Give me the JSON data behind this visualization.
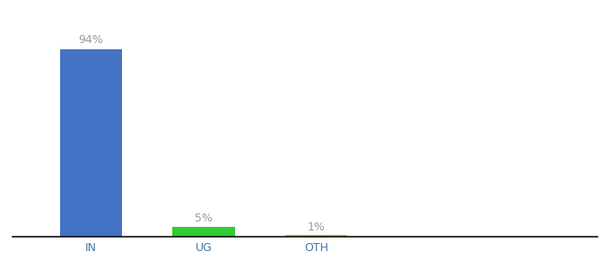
{
  "categories": [
    "IN",
    "UG",
    "OTH"
  ],
  "values": [
    94,
    5,
    1
  ],
  "bar_colors": [
    "#4472c4",
    "#33cc33",
    "#f0a800"
  ],
  "labels": [
    "94%",
    "5%",
    "1%"
  ],
  "title_fontsize": 10,
  "label_fontsize": 9,
  "tick_fontsize": 9,
  "background_color": "#ffffff",
  "ylim": [
    0,
    105
  ],
  "bar_width": 0.55,
  "label_color": "#999999",
  "tick_color": "#4477aa",
  "x_positions": [
    1,
    2,
    3
  ],
  "xlim": [
    0.3,
    5.5
  ]
}
